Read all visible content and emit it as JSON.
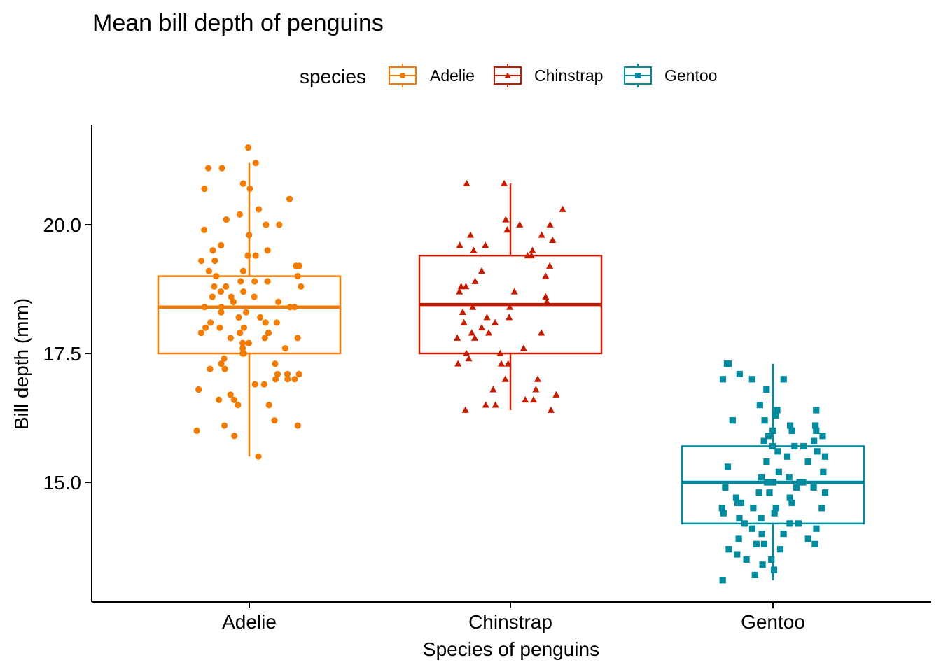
{
  "chart_data": {
    "type": "boxplot",
    "title": "Mean bill depth of penguins",
    "xlabel": "Species of penguins",
    "ylabel": "Bill depth (mm)",
    "ylim": [
      12.8,
      21.8
    ],
    "yticks": [
      15.0,
      17.5,
      20.0
    ],
    "ytick_labels": [
      "15.0",
      "17.5",
      "20.0"
    ],
    "categories": [
      "Adelie",
      "Chinstrap",
      "Gentoo"
    ],
    "grid": false,
    "legend": {
      "title": "species",
      "position": "top"
    },
    "series": [
      {
        "name": "Adelie",
        "color": "#F37B00",
        "marker": "circle",
        "box": {
          "min": 15.5,
          "q1": 17.5,
          "median": 18.4,
          "q3": 19.0,
          "max": 21.2
        },
        "points": [
          21.5,
          21.2,
          21.1,
          21.1,
          20.8,
          20.7,
          20.7,
          20.5,
          20.3,
          20.2,
          20.1,
          20.0,
          20.0,
          19.9,
          19.8,
          19.6,
          19.5,
          19.5,
          19.4,
          19.4,
          19.3,
          19.3,
          19.2,
          19.2,
          19.1,
          19.1,
          19.0,
          19.0,
          18.9,
          18.9,
          18.9,
          18.8,
          18.8,
          18.8,
          18.7,
          18.7,
          18.6,
          18.6,
          18.6,
          18.5,
          18.5,
          18.5,
          18.4,
          18.4,
          18.4,
          18.4,
          18.3,
          18.3,
          18.2,
          18.2,
          18.1,
          18.1,
          18.1,
          18.0,
          18.0,
          18.0,
          17.9,
          17.9,
          17.9,
          17.8,
          17.8,
          17.8,
          17.7,
          17.7,
          17.6,
          17.6,
          17.5,
          17.5,
          17.4,
          17.3,
          17.3,
          17.2,
          17.2,
          17.1,
          17.1,
          17.1,
          17.0,
          17.0,
          17.0,
          16.9,
          16.9,
          16.8,
          16.7,
          16.6,
          16.6,
          16.5,
          16.5,
          16.2,
          16.1,
          16.1,
          16.0,
          15.9,
          15.5
        ]
      },
      {
        "name": "Chinstrap",
        "color": "#C51B00",
        "marker": "triangle",
        "box": {
          "min": 16.4,
          "q1": 17.5,
          "median": 18.45,
          "q3": 19.4,
          "max": 20.8
        },
        "points": [
          20.8,
          20.8,
          20.3,
          20.1,
          20.0,
          20.0,
          19.9,
          19.8,
          19.8,
          19.7,
          19.6,
          19.6,
          19.5,
          19.5,
          19.4,
          19.4,
          19.2,
          19.1,
          19.0,
          18.9,
          18.8,
          18.8,
          18.7,
          18.7,
          18.6,
          18.5,
          18.4,
          18.4,
          18.3,
          18.2,
          18.2,
          18.1,
          18.1,
          18.0,
          17.9,
          17.9,
          17.9,
          17.8,
          17.8,
          17.6,
          17.5,
          17.5,
          17.4,
          17.3,
          17.3,
          17.3,
          17.0,
          17.0,
          16.8,
          16.8,
          16.7,
          16.6,
          16.6,
          16.5,
          16.5,
          16.4,
          16.4
        ]
      },
      {
        "name": "Gentoo",
        "color": "#008B9E",
        "marker": "square",
        "box": {
          "min": 13.1,
          "q1": 14.2,
          "median": 15.0,
          "q3": 15.7,
          "max": 17.3
        },
        "points": [
          17.3,
          17.3,
          17.1,
          17.0,
          17.0,
          17.0,
          16.8,
          16.5,
          16.4,
          16.4,
          16.3,
          16.2,
          16.2,
          16.1,
          16.1,
          16.0,
          16.0,
          16.0,
          15.9,
          15.9,
          15.8,
          15.8,
          15.7,
          15.7,
          15.7,
          15.6,
          15.6,
          15.5,
          15.5,
          15.4,
          15.4,
          15.3,
          15.2,
          15.2,
          15.1,
          15.1,
          15.0,
          15.0,
          15.0,
          15.0,
          14.9,
          14.9,
          14.9,
          14.8,
          14.8,
          14.8,
          14.7,
          14.7,
          14.6,
          14.6,
          14.6,
          14.5,
          14.5,
          14.5,
          14.5,
          14.4,
          14.4,
          14.3,
          14.3,
          14.2,
          14.2,
          14.2,
          14.1,
          14.1,
          14.0,
          14.0,
          13.9,
          13.9,
          13.8,
          13.8,
          13.8,
          13.7,
          13.7,
          13.6,
          13.5,
          13.5,
          13.4,
          13.3,
          13.2,
          13.1
        ]
      }
    ]
  }
}
